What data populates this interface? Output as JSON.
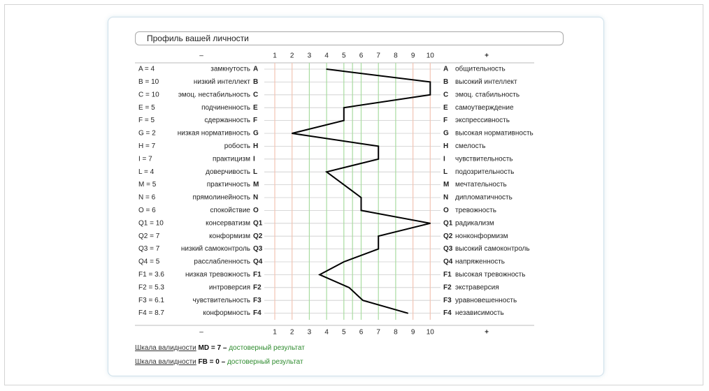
{
  "title": "Профиль вашей личности",
  "scale": {
    "minus_label": "–",
    "plus_label": "+",
    "ticks": [
      "1",
      "2",
      "3",
      "4",
      "5",
      "6",
      "7",
      "8",
      "9",
      "10"
    ]
  },
  "colors": {
    "line_red": "#f2c4b4",
    "line_green": "#a8dca0",
    "grid": "#cccccc",
    "profile": "#000000",
    "verdict": "#2e8b2e"
  },
  "chart_data": {
    "type": "line",
    "xlim": [
      1,
      10
    ],
    "factors": [
      {
        "score_label": "A = 4",
        "letter": "A",
        "left": "замкнутость",
        "right": "общительность",
        "value": 4
      },
      {
        "score_label": "B = 10",
        "letter": "B",
        "left": "низкий интеллект",
        "right": "высокий интеллект",
        "value": 10
      },
      {
        "score_label": "C = 10",
        "letter": "C",
        "left": "эмоц. нестабильность",
        "right": "эмоц. стабильность",
        "value": 10
      },
      {
        "score_label": "E = 5",
        "letter": "E",
        "left": "подчиненность",
        "right": "самоутверждение",
        "value": 5
      },
      {
        "score_label": "F = 5",
        "letter": "F",
        "left": "сдержанность",
        "right": "экспрессивность",
        "value": 5
      },
      {
        "score_label": "G = 2",
        "letter": "G",
        "left": "низкая нормативность",
        "right": "высокая нормативность",
        "value": 2
      },
      {
        "score_label": "H = 7",
        "letter": "H",
        "left": "робость",
        "right": "смелость",
        "value": 7
      },
      {
        "score_label": "I = 7",
        "letter": "I",
        "left": "практицизм",
        "right": "чувствительность",
        "value": 7
      },
      {
        "score_label": "L = 4",
        "letter": "L",
        "left": "доверчивость",
        "right": "подозрительность",
        "value": 4
      },
      {
        "score_label": "M = 5",
        "letter": "M",
        "left": "практичность",
        "right": "мечтательность",
        "value": 5
      },
      {
        "score_label": "N = 6",
        "letter": "N",
        "left": "прямолинейность",
        "right": "дипломатичность",
        "value": 6
      },
      {
        "score_label": "O = 6",
        "letter": "O",
        "left": "спокойствие",
        "right": "тревожность",
        "value": 6
      },
      {
        "score_label": "Q1 = 10",
        "letter": "Q1",
        "left": "консерватизм",
        "right": "радикализм",
        "value": 10
      },
      {
        "score_label": "Q2 = 7",
        "letter": "Q2",
        "left": "конформизм",
        "right": "нонконформизм",
        "value": 7
      },
      {
        "score_label": "Q3 = 7",
        "letter": "Q3",
        "left": "низкий самоконтроль",
        "right": "высокий самоконтроль",
        "value": 7
      },
      {
        "score_label": "Q4 = 5",
        "letter": "Q4",
        "left": "расслабленность",
        "right": "напряженность",
        "value": 5
      },
      {
        "score_label": "F1 = 3.6",
        "letter": "F1",
        "left": "низкая тревожность",
        "right": "высокая тревожность",
        "value": 3.6
      },
      {
        "score_label": "F2 = 5.3",
        "letter": "F2",
        "left": "интроверсия",
        "right": "экстраверсия",
        "value": 5.3
      },
      {
        "score_label": "F3 = 6.1",
        "letter": "F3",
        "left": "чувствительность",
        "right": "уравновешенность",
        "value": 6.1
      },
      {
        "score_label": "F4 = 8.7",
        "letter": "F4",
        "left": "конформность",
        "right": "независимость",
        "value": 8.7
      }
    ]
  },
  "validity": [
    {
      "link": "Шкала валидности",
      "value": "MD = 7",
      "dash": " – ",
      "verdict": "достоверный результат"
    },
    {
      "link": "Шкала валидности",
      "value": "FB = 0",
      "dash": " – ",
      "verdict": "достоверный результат"
    }
  ]
}
